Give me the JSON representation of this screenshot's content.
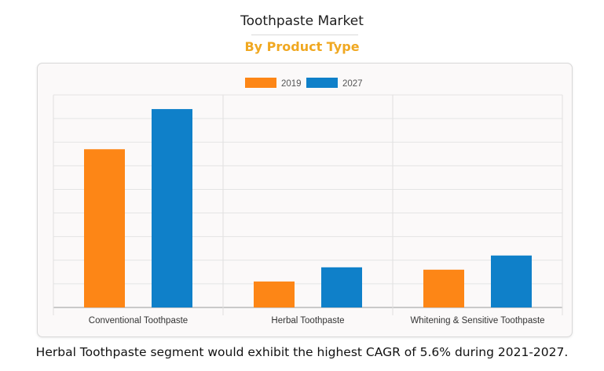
{
  "header": {
    "title": "Toothpaste Market",
    "subtitle": "By Product Type"
  },
  "caption": "Herbal Toothpaste segment would exhibit the highest CAGR of 5.6% during 2021-2027.",
  "colors": {
    "series_2019": "#fd8616",
    "series_2027": "#0f80c9",
    "subtitle": "#f0a821"
  },
  "chart_data": {
    "type": "bar",
    "title": "",
    "xlabel": "",
    "ylabel": "",
    "categories": [
      "Conventional Toothpaste",
      "Herbal Toothpaste",
      "Whitening & Sensitive Toothpaste"
    ],
    "series": [
      {
        "name": "2019",
        "color": "#fd8616",
        "values": [
          6.7,
          1.1,
          1.6
        ]
      },
      {
        "name": "2027",
        "color": "#0f80c9",
        "values": [
          8.4,
          1.7,
          2.2
        ]
      }
    ],
    "ylim": [
      0,
      9
    ],
    "y_tick_labels_shown": false,
    "grid": true,
    "legend": "top-center"
  }
}
